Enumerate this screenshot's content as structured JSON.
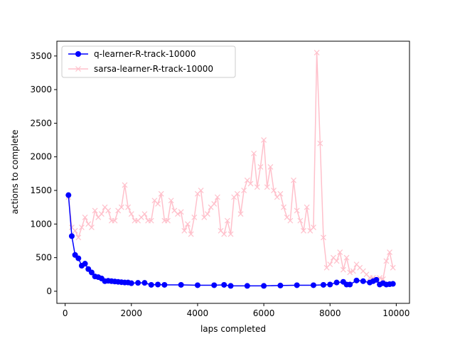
{
  "chart_data": {
    "type": "line",
    "xlabel": "laps completed",
    "ylabel": "actions to complete",
    "xlim": [
      -250,
      10400
    ],
    "ylim": [
      -180,
      3720
    ],
    "xticks": [
      0,
      2000,
      4000,
      6000,
      8000,
      10000
    ],
    "yticks": [
      0,
      500,
      1000,
      1500,
      2000,
      2500,
      3000,
      3500
    ],
    "grid": false,
    "legend_position": "upper-left",
    "series": [
      {
        "name": "q-learner-R-track-10000",
        "color": "#0000ff",
        "marker": "circle",
        "x": [
          100,
          200,
          300,
          400,
          500,
          600,
          700,
          800,
          900,
          1000,
          1100,
          1200,
          1300,
          1400,
          1500,
          1600,
          1700,
          1800,
          1900,
          2000,
          2200,
          2400,
          2600,
          2800,
          3000,
          3500,
          4000,
          4500,
          4800,
          5000,
          5500,
          6000,
          6500,
          7000,
          7500,
          7800,
          8000,
          8200,
          8400,
          8500,
          8600,
          8800,
          9000,
          9200,
          9300,
          9400,
          9500,
          9600,
          9700,
          9800,
          9900
        ],
        "y": [
          1430,
          820,
          540,
          490,
          380,
          410,
          330,
          280,
          220,
          210,
          190,
          150,
          155,
          150,
          145,
          140,
          135,
          130,
          130,
          120,
          125,
          125,
          95,
          100,
          95,
          95,
          90,
          90,
          95,
          80,
          80,
          80,
          85,
          90,
          90,
          95,
          100,
          130,
          140,
          100,
          100,
          160,
          150,
          130,
          150,
          170,
          100,
          120,
          100,
          105,
          110
        ]
      },
      {
        "name": "sarsa-learner-R-track-10000",
        "color": "#ffc0cb",
        "marker": "x",
        "x": [
          100,
          200,
          300,
          400,
          500,
          600,
          700,
          800,
          900,
          1000,
          1100,
          1200,
          1300,
          1400,
          1500,
          1600,
          1700,
          1800,
          1900,
          2000,
          2100,
          2200,
          2300,
          2400,
          2500,
          2600,
          2700,
          2800,
          2900,
          3000,
          3100,
          3200,
          3300,
          3400,
          3500,
          3600,
          3700,
          3800,
          3900,
          4000,
          4100,
          4200,
          4300,
          4400,
          4500,
          4600,
          4700,
          4800,
          4900,
          5000,
          5100,
          5200,
          5300,
          5400,
          5500,
          5600,
          5700,
          5800,
          5900,
          6000,
          6100,
          6200,
          6300,
          6400,
          6500,
          6600,
          6700,
          6800,
          6900,
          7000,
          7100,
          7200,
          7300,
          7400,
          7500,
          7600,
          7700,
          7800,
          7900,
          8000,
          8100,
          8200,
          8300,
          8400,
          8500,
          8600,
          8700,
          8800,
          8900,
          9000,
          9100,
          9200,
          9300,
          9400,
          9500,
          9600,
          9700,
          9800,
          9900
        ],
        "y": [
          1400,
          950,
          900,
          800,
          950,
          1100,
          1000,
          950,
          1200,
          1100,
          1150,
          1250,
          1200,
          1050,
          1050,
          1200,
          1250,
          1580,
          1250,
          1150,
          1050,
          1050,
          1100,
          1150,
          1050,
          1050,
          1350,
          1300,
          1450,
          1050,
          1050,
          1350,
          1200,
          1150,
          1180,
          900,
          1000,
          850,
          1100,
          1450,
          1500,
          1100,
          1150,
          1250,
          1300,
          1400,
          900,
          850,
          1050,
          850,
          1400,
          1450,
          1150,
          1500,
          1650,
          1600,
          2050,
          1550,
          1850,
          2250,
          1550,
          1850,
          1500,
          1400,
          1450,
          1250,
          1100,
          1050,
          1650,
          1200,
          1050,
          900,
          1250,
          900,
          950,
          3550,
          2200,
          800,
          350,
          400,
          500,
          450,
          580,
          320,
          500,
          280,
          300,
          400,
          350,
          300,
          250,
          200,
          200,
          180,
          200,
          180,
          450,
          580,
          350
        ]
      }
    ]
  }
}
